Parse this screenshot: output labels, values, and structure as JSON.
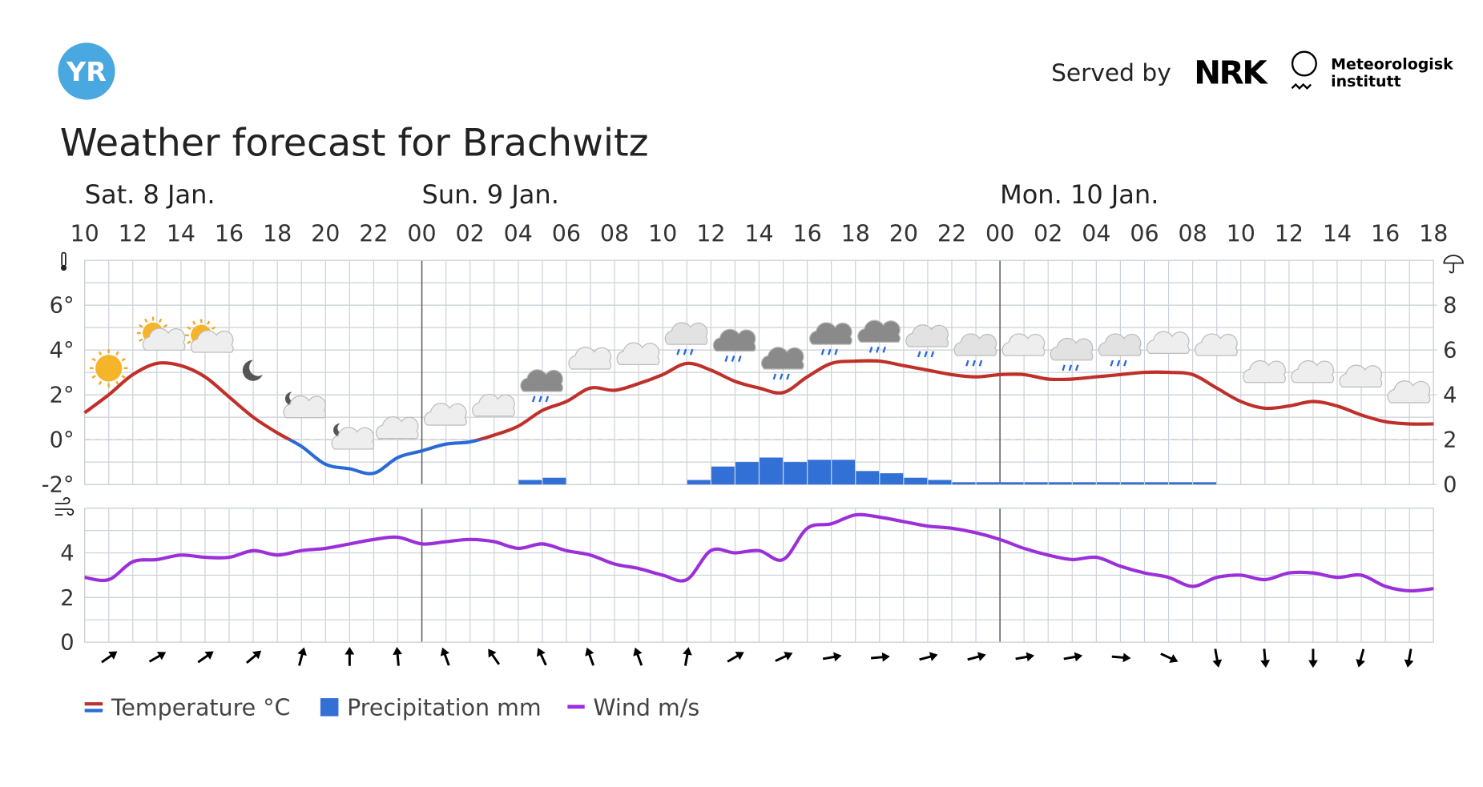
{
  "header": {
    "logo": "YR",
    "served_by": "Served by",
    "partner": "NRK",
    "institute": [
      "Meteorologisk",
      "institutt"
    ]
  },
  "chart_data": [
    {
      "type": "meteogram",
      "title": "Weather forecast for Brachwitz",
      "day_labels": [
        "Sat. 8 Jan.",
        "Sun. 9 Jan.",
        "Mon. 10 Jan."
      ],
      "categories": [
        "10",
        null,
        "12",
        null,
        "14",
        null,
        "16",
        null,
        "18",
        null,
        "20",
        null,
        "22",
        null,
        "00",
        null,
        "02",
        null,
        "04",
        null,
        "06",
        null,
        "08",
        null,
        "10",
        null,
        "12",
        null,
        "14",
        null,
        "16",
        null,
        "18",
        null,
        "20",
        null,
        "22",
        null,
        "00",
        null,
        "02",
        null,
        "04",
        null,
        "06",
        null,
        "08",
        null,
        "10",
        null,
        "12",
        null,
        "14",
        null,
        "16",
        null,
        "18"
      ],
      "series": [
        {
          "name": "Temperature °C",
          "color": "#c0302a",
          "negative_color": "#2a6ad6",
          "values": [
            1.2,
            2.0,
            2.9,
            3.4,
            3.3,
            2.8,
            1.9,
            1.0,
            0.3,
            -0.3,
            -1.1,
            -1.3,
            -1.5,
            -0.8,
            -0.5,
            -0.2,
            -0.1,
            0.2,
            0.6,
            1.3,
            1.7,
            2.3,
            2.2,
            2.5,
            2.9,
            3.4,
            3.1,
            2.6,
            2.3,
            2.1,
            2.8,
            3.4,
            3.5,
            3.5,
            3.3,
            3.1,
            2.9,
            2.8,
            2.9,
            2.9,
            2.7,
            2.7,
            2.8,
            2.9,
            3.0,
            3.0,
            2.9,
            2.3,
            1.7,
            1.4,
            1.5,
            1.7,
            1.5,
            1.1,
            0.8,
            0.7,
            0.7
          ]
        },
        {
          "name": "Precipitation mm",
          "color": "#3370d6",
          "axis": "y2",
          "values": [
            0,
            0,
            0,
            0,
            0,
            0,
            0,
            0,
            0,
            0,
            0,
            0,
            0,
            0,
            0,
            0,
            0,
            0,
            0.2,
            0.3,
            0,
            0,
            0,
            0,
            0,
            0.2,
            0.8,
            1.0,
            1.2,
            1.0,
            1.1,
            1.1,
            0.6,
            0.5,
            0.3,
            0.2,
            0.1,
            0.1,
            0.1,
            0.1,
            0.1,
            0.1,
            0.1,
            0.1,
            0.1,
            0.1,
            0.1,
            0,
            0,
            0,
            0,
            0,
            0,
            0,
            0,
            0,
            0
          ]
        }
      ],
      "ylim": [
        -2,
        8
      ],
      "yticks": [
        {
          "value": -2,
          "label": "-2°"
        },
        {
          "value": 0,
          "label": "0°"
        },
        {
          "value": 2,
          "label": "2°"
        },
        {
          "value": 4,
          "label": "4°"
        },
        {
          "value": 6,
          "label": "6°"
        }
      ],
      "y2lim": [
        0,
        10
      ],
      "y2ticks": [
        0,
        2,
        4,
        6,
        8
      ],
      "grid": true
    },
    {
      "type": "line",
      "series": [
        {
          "name": "Wind m/s",
          "color": "#9b2fd9",
          "values": [
            2.9,
            2.8,
            3.6,
            3.7,
            3.9,
            3.8,
            3.8,
            4.1,
            3.9,
            4.1,
            4.2,
            4.4,
            4.6,
            4.7,
            4.4,
            4.5,
            4.6,
            4.5,
            4.2,
            4.4,
            4.1,
            3.9,
            3.5,
            3.3,
            3.0,
            2.8,
            4.1,
            4.0,
            4.1,
            3.7,
            5.1,
            5.3,
            5.7,
            5.6,
            5.4,
            5.2,
            5.1,
            4.9,
            4.6,
            4.2,
            3.9,
            3.7,
            3.8,
            3.4,
            3.1,
            2.9,
            2.5,
            2.9,
            3.0,
            2.8,
            3.1,
            3.1,
            2.9,
            3.0,
            2.5,
            2.3,
            2.4
          ]
        }
      ],
      "wind_direction": [
        55,
        60,
        55,
        50,
        15,
        0,
        355,
        340,
        325,
        335,
        340,
        340,
        10,
        60,
        65,
        80,
        85,
        75,
        75,
        80,
        80,
        95,
        115,
        170,
        175,
        180,
        195,
        190
      ],
      "ylim": [
        0,
        6
      ],
      "yticks": [
        0,
        2,
        4
      ],
      "grid": true
    }
  ]
}
